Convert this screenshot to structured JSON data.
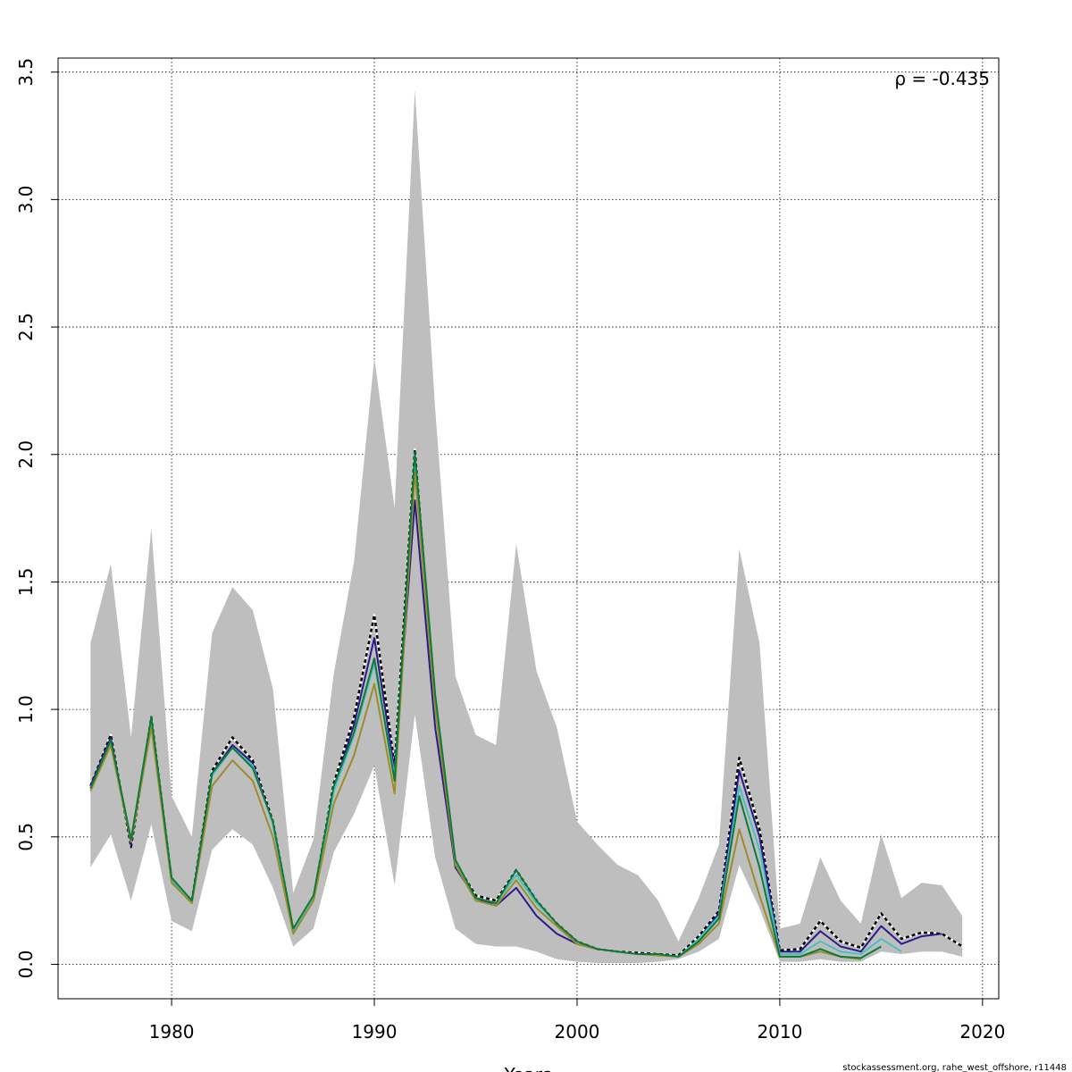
{
  "chart_data": {
    "type": "line",
    "xlabel": "Years",
    "ylabel": "",
    "xlim": [
      1974.4,
      2020.8
    ],
    "ylim": [
      -0.135,
      3.555
    ],
    "x_ticks": [
      1980,
      1990,
      2000,
      2010,
      2020
    ],
    "y_ticks": [
      0.0,
      0.5,
      1.0,
      1.5,
      2.0,
      2.5,
      3.0,
      3.5
    ],
    "x_tick_labels": [
      "1980",
      "1990",
      "2000",
      "2010",
      "2020"
    ],
    "y_tick_labels": [
      "0.0",
      "0.5",
      "1.0",
      "1.5",
      "2.0",
      "2.5",
      "3.0",
      "3.5"
    ],
    "grid": true,
    "annotation": "ρ = -0.435",
    "credit": "stockassessment.org, rahe_west_offshore, r11448",
    "confidence_band": {
      "x": [
        1976,
        1977,
        1978,
        1979,
        1980,
        1981,
        1982,
        1983,
        1984,
        1985,
        1986,
        1987,
        1988,
        1989,
        1990,
        1991,
        1992,
        1993,
        1994,
        1995,
        1996,
        1997,
        1998,
        1999,
        2000,
        2001,
        2002,
        2003,
        2004,
        2005,
        2006,
        2007,
        2008,
        2009,
        2010,
        2011,
        2012,
        2013,
        2014,
        2015,
        2016,
        2017,
        2018,
        2019
      ],
      "upper": [
        1.26,
        1.57,
        0.89,
        1.71,
        0.66,
        0.5,
        1.3,
        1.48,
        1.39,
        1.08,
        0.28,
        0.49,
        1.14,
        1.58,
        2.38,
        1.79,
        3.43,
        2.18,
        1.13,
        0.9,
        0.86,
        1.65,
        1.15,
        0.93,
        0.56,
        0.47,
        0.39,
        0.35,
        0.25,
        0.09,
        0.26,
        0.47,
        1.63,
        1.26,
        0.14,
        0.16,
        0.42,
        0.25,
        0.16,
        0.51,
        0.26,
        0.32,
        0.31,
        0.19
      ],
      "lower": [
        0.38,
        0.51,
        0.25,
        0.55,
        0.17,
        0.13,
        0.45,
        0.53,
        0.47,
        0.3,
        0.07,
        0.14,
        0.44,
        0.59,
        0.78,
        0.31,
        0.98,
        0.42,
        0.14,
        0.08,
        0.07,
        0.07,
        0.05,
        0.02,
        0.01,
        0.005,
        0.005,
        0.005,
        0.01,
        0.02,
        0.05,
        0.1,
        0.39,
        0.22,
        0.01,
        0.01,
        0.02,
        0.01,
        0.01,
        0.05,
        0.04,
        0.05,
        0.05,
        0.03
      ],
      "color": "#bebebe"
    },
    "series": [
      {
        "color": "#000000",
        "dashed": true,
        "x": [
          1976,
          1977,
          1978,
          1979,
          1980,
          1981,
          1982,
          1983,
          1984,
          1985,
          1986,
          1987,
          1988,
          1989,
          1990,
          1991,
          1992,
          1993,
          1994,
          1995,
          1996,
          1997,
          1998,
          1999,
          2000,
          2001,
          2002,
          2003,
          2004,
          2005,
          2006,
          2007,
          2008,
          2009,
          2010,
          2011,
          2012,
          2013,
          2014,
          2015,
          2016,
          2017,
          2018,
          2019
        ],
        "values": [
          0.7,
          0.9,
          0.46,
          0.97,
          0.33,
          0.25,
          0.76,
          0.89,
          0.8,
          0.56,
          0.13,
          0.26,
          0.71,
          0.97,
          1.37,
          0.78,
          2.02,
          1.01,
          0.4,
          0.27,
          0.25,
          0.37,
          0.25,
          0.16,
          0.09,
          0.06,
          0.05,
          0.045,
          0.04,
          0.035,
          0.11,
          0.21,
          0.81,
          0.53,
          0.055,
          0.06,
          0.17,
          0.09,
          0.065,
          0.2,
          0.1,
          0.125,
          0.12,
          0.07
        ]
      },
      {
        "color": "#2b1a8e",
        "dashed": false,
        "x": [
          1976,
          1977,
          1978,
          1979,
          1980,
          1981,
          1982,
          1983,
          1984,
          1985,
          1986,
          1987,
          1988,
          1989,
          1990,
          1991,
          1992,
          1993,
          1994,
          1995,
          1996,
          1997,
          1998,
          1999,
          2000,
          2001,
          2002,
          2003,
          2004,
          2005,
          2006,
          2007,
          2008,
          2009,
          2010,
          2011,
          2012,
          2013,
          2014,
          2015,
          2016,
          2017,
          2018
        ],
        "values": [
          0.7,
          0.89,
          0.47,
          0.96,
          0.33,
          0.25,
          0.75,
          0.86,
          0.79,
          0.55,
          0.13,
          0.26,
          0.69,
          0.94,
          1.28,
          0.76,
          1.82,
          0.93,
          0.38,
          0.26,
          0.23,
          0.3,
          0.19,
          0.12,
          0.08,
          0.06,
          0.05,
          0.04,
          0.04,
          0.03,
          0.1,
          0.2,
          0.76,
          0.5,
          0.05,
          0.05,
          0.13,
          0.07,
          0.05,
          0.15,
          0.08,
          0.11,
          0.12
        ]
      },
      {
        "color": "#48c0c0",
        "dashed": false,
        "x": [
          1976,
          1977,
          1978,
          1979,
          1980,
          1981,
          1982,
          1983,
          1984,
          1985,
          1986,
          1987,
          1988,
          1989,
          1990,
          1991,
          1992,
          1993,
          1994,
          1995,
          1996,
          1997,
          1998,
          1999,
          2000,
          2001,
          2002,
          2003,
          2004,
          2005,
          2006,
          2007,
          2008,
          2009,
          2010,
          2011,
          2012,
          2013,
          2014,
          2015,
          2016
        ],
        "values": [
          0.69,
          0.87,
          0.48,
          0.95,
          0.33,
          0.25,
          0.74,
          0.85,
          0.78,
          0.55,
          0.13,
          0.26,
          0.68,
          0.9,
          1.18,
          0.74,
          1.96,
          1.02,
          0.4,
          0.26,
          0.24,
          0.35,
          0.24,
          0.16,
          0.09,
          0.06,
          0.05,
          0.04,
          0.04,
          0.03,
          0.1,
          0.19,
          0.7,
          0.45,
          0.04,
          0.04,
          0.09,
          0.05,
          0.04,
          0.1,
          0.05
        ]
      },
      {
        "color": "#9a8d2a",
        "dashed": false,
        "x": [
          1976,
          1977,
          1978,
          1979,
          1980,
          1981,
          1982,
          1983,
          1984,
          1985,
          1986,
          1987,
          1988,
          1989,
          1990,
          1991,
          1992,
          1993,
          1994,
          1995,
          1996,
          1997,
          1998,
          1999,
          2000,
          2001,
          2002,
          2003,
          2004,
          2005,
          2006,
          2007,
          2008,
          2009,
          2010,
          2011,
          2012,
          2013,
          2014
        ],
        "values": [
          0.68,
          0.86,
          0.48,
          0.93,
          0.32,
          0.24,
          0.7,
          0.8,
          0.72,
          0.5,
          0.12,
          0.25,
          0.63,
          0.82,
          1.1,
          0.67,
          1.93,
          1.0,
          0.39,
          0.25,
          0.23,
          0.33,
          0.22,
          0.15,
          0.08,
          0.06,
          0.05,
          0.04,
          0.035,
          0.03,
          0.08,
          0.16,
          0.53,
          0.27,
          0.03,
          0.03,
          0.05,
          0.03,
          0.02
        ]
      },
      {
        "color": "#0e7a3a",
        "dashed": false,
        "x": [
          1976,
          1977,
          1978,
          1979,
          1980,
          1981,
          1982,
          1983,
          1984,
          1985,
          1986,
          1987,
          1988,
          1989,
          1990,
          1991,
          1992,
          1993,
          1994,
          1995,
          1996,
          1997,
          1998,
          1999,
          2000,
          2001,
          2002,
          2003,
          2004,
          2005,
          2006,
          2007,
          2008,
          2009,
          2010,
          2011,
          2012,
          2013,
          2014,
          2015
        ],
        "values": [
          0.69,
          0.88,
          0.49,
          0.97,
          0.34,
          0.25,
          0.75,
          0.85,
          0.77,
          0.56,
          0.14,
          0.27,
          0.7,
          0.91,
          1.2,
          0.72,
          2.01,
          1.06,
          0.41,
          0.26,
          0.24,
          0.37,
          0.25,
          0.16,
          0.09,
          0.06,
          0.05,
          0.04,
          0.04,
          0.03,
          0.09,
          0.18,
          0.66,
          0.38,
          0.03,
          0.03,
          0.06,
          0.03,
          0.025,
          0.07
        ]
      }
    ]
  }
}
